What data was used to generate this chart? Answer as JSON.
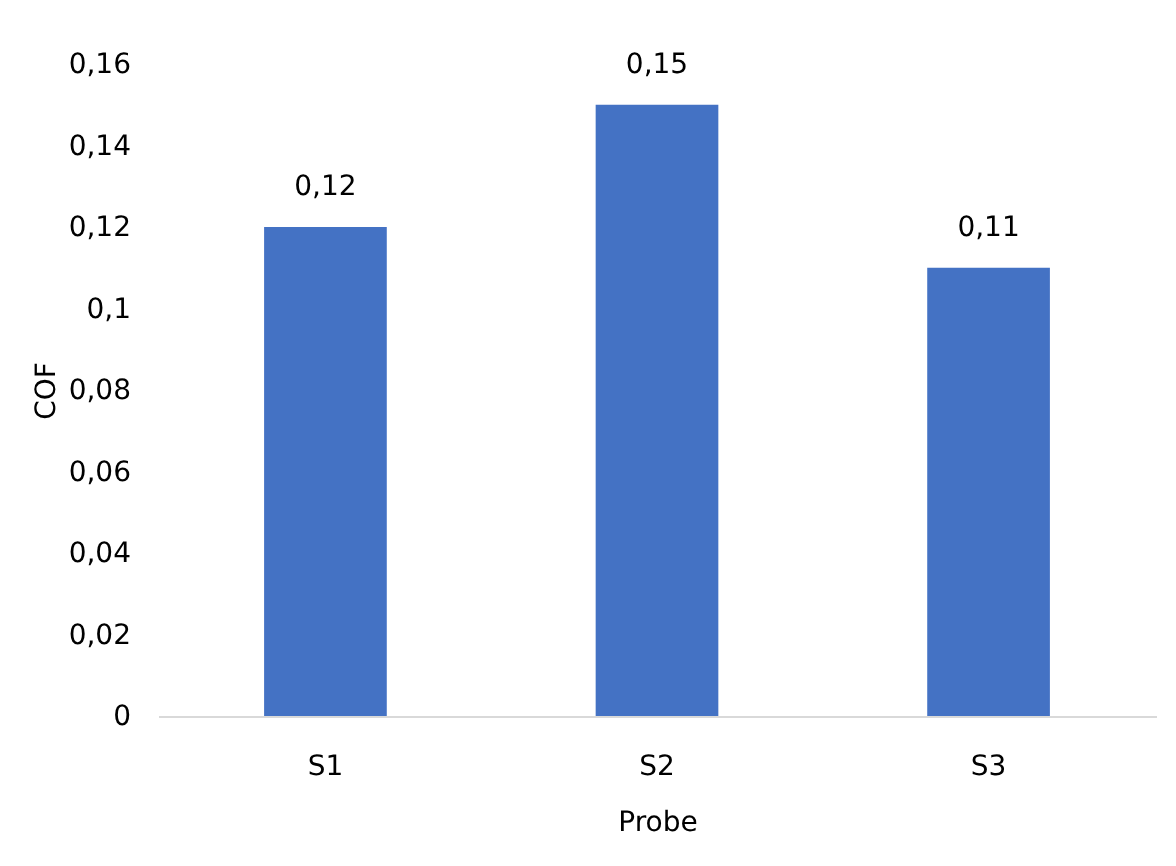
{
  "chart_data": {
    "type": "bar",
    "xlabel": "Probe",
    "ylabel": "COF",
    "categories": [
      "S1",
      "S2",
      "S3"
    ],
    "values": [
      0.12,
      0.15,
      0.11
    ],
    "value_labels": [
      "0,12",
      "0,15",
      "0,11"
    ],
    "color": "#4472c4",
    "ylim": [
      0,
      0.16
    ],
    "yticks": [
      {
        "value": 0,
        "label": "0"
      },
      {
        "value": 0.02,
        "label": "0,02"
      },
      {
        "value": 0.04,
        "label": "0,04"
      },
      {
        "value": 0.06,
        "label": "0,06"
      },
      {
        "value": 0.08,
        "label": "0,08"
      },
      {
        "value": 0.1,
        "label": "0,1"
      },
      {
        "value": 0.12,
        "label": "0,12"
      },
      {
        "value": 0.14,
        "label": "0,14"
      },
      {
        "value": 0.16,
        "label": "0,16"
      }
    ],
    "grid": false
  }
}
